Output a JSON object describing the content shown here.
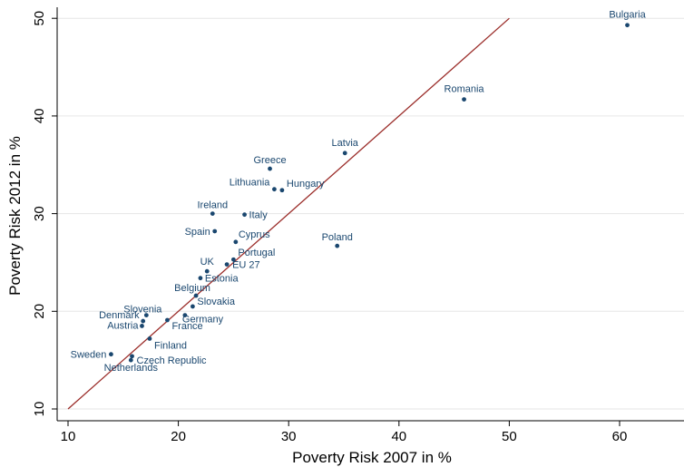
{
  "chart_data": {
    "type": "scatter",
    "title": "",
    "xlabel": "Poverty Risk 2007 in %",
    "ylabel": "Poverty Risk 2012 in %",
    "xlim": [
      10,
      65
    ],
    "ylim": [
      10,
      50
    ],
    "xticks": [
      "10",
      "20",
      "30",
      "40",
      "50",
      "60"
    ],
    "yticks": [
      "10",
      "20",
      "30",
      "40",
      "50"
    ],
    "grid": true,
    "legend": "none",
    "marker_color": "#1a476f",
    "reference_line": {
      "from": [
        10,
        10
      ],
      "to": [
        50,
        50
      ],
      "color": "#9b2d2a"
    },
    "points": [
      {
        "label": "Bulgaria",
        "x": 60.7,
        "y": 49.3
      },
      {
        "label": "Romania",
        "x": 45.9,
        "y": 41.7
      },
      {
        "label": "Latvia",
        "x": 35.1,
        "y": 36.2
      },
      {
        "label": "Greece",
        "x": 28.3,
        "y": 34.6
      },
      {
        "label": "Lithuania",
        "x": 28.7,
        "y": 32.5
      },
      {
        "label": "Hungary",
        "x": 29.4,
        "y": 32.4
      },
      {
        "label": "Ireland",
        "x": 23.1,
        "y": 30.0
      },
      {
        "label": "Italy",
        "x": 26.0,
        "y": 29.9
      },
      {
        "label": "Spain",
        "x": 23.3,
        "y": 28.2
      },
      {
        "label": "Cyprus",
        "x": 25.2,
        "y": 27.1
      },
      {
        "label": "Poland",
        "x": 34.4,
        "y": 26.7
      },
      {
        "label": "Portugal",
        "x": 25.0,
        "y": 25.3
      },
      {
        "label": "EU 27",
        "x": 24.4,
        "y": 24.8
      },
      {
        "label": "UK",
        "x": 22.6,
        "y": 24.1
      },
      {
        "label": "Estonia",
        "x": 22.0,
        "y": 23.4
      },
      {
        "label": "Belgium",
        "x": 21.6,
        "y": 21.6
      },
      {
        "label": "Slovakia",
        "x": 21.3,
        "y": 20.5
      },
      {
        "label": "Slovenia",
        "x": 17.1,
        "y": 19.6
      },
      {
        "label": "Denmark",
        "x": 16.8,
        "y": 19.0
      },
      {
        "label": "Germany",
        "x": 20.6,
        "y": 19.6
      },
      {
        "label": "France",
        "x": 19.0,
        "y": 19.1
      },
      {
        "label": "Austria",
        "x": 16.7,
        "y": 18.5
      },
      {
        "label": "Finland",
        "x": 17.4,
        "y": 17.2
      },
      {
        "label": "Sweden",
        "x": 13.9,
        "y": 15.6
      },
      {
        "label": "Czech Republic",
        "x": 15.8,
        "y": 15.4
      },
      {
        "label": "Netherlands",
        "x": 15.7,
        "y": 15.0
      }
    ]
  }
}
